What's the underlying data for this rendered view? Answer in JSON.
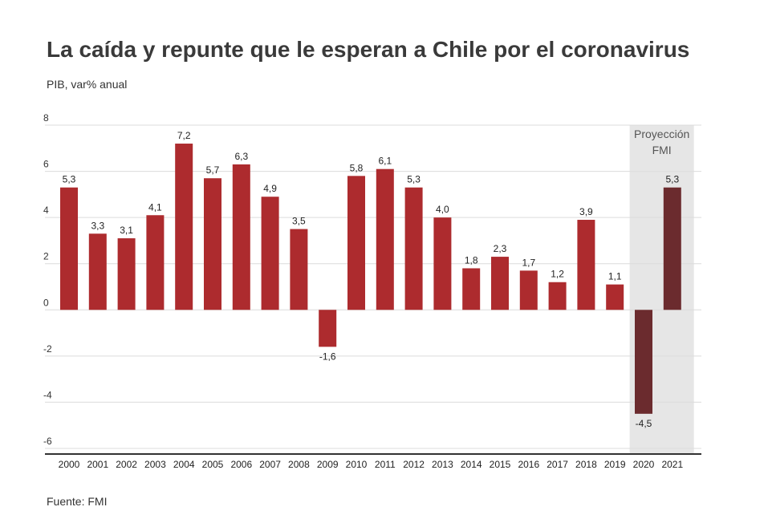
{
  "title": "La caída y repunte que le esperan a Chile por el coronavirus",
  "subtitle": "PIB, var% anual",
  "source": "Fuente: FMI",
  "colors": {
    "historical": "#ad2b2e",
    "projection": "#6b2b2e",
    "projection_band": "#e6e6e6",
    "grid": "#dcdcdc",
    "axis": "#333333"
  },
  "chart_data": {
    "type": "bar",
    "categories": [
      "2000",
      "2001",
      "2002",
      "2003",
      "2004",
      "2005",
      "2006",
      "2007",
      "2008",
      "2009",
      "2010",
      "2011",
      "2012",
      "2013",
      "2014",
      "2015",
      "2016",
      "2017",
      "2018",
      "2019",
      "2020",
      "2021"
    ],
    "values": [
      5.3,
      3.3,
      3.1,
      4.1,
      7.2,
      5.7,
      6.3,
      4.9,
      3.5,
      -1.6,
      5.8,
      6.1,
      5.3,
      4.0,
      1.8,
      2.3,
      1.7,
      1.2,
      3.9,
      1.1,
      -4.5,
      5.3
    ],
    "value_labels": [
      "5,3",
      "3,3",
      "3,1",
      "4,1",
      "7,2",
      "5,7",
      "6,3",
      "4,9",
      "3,5",
      "-1,6",
      "5,8",
      "6,1",
      "5,3",
      "4,0",
      "1,8",
      "2,3",
      "1,7",
      "1,2",
      "3,9",
      "1,1",
      "-4,5",
      "5,3"
    ],
    "projected": [
      "2020",
      "2021"
    ],
    "projection_label_lines": [
      "Proyección",
      "FMI"
    ],
    "ylim": [
      -6,
      8
    ],
    "yticks": [
      8,
      6,
      4,
      2,
      0,
      -2,
      -4,
      -6
    ],
    "ytick_labels": [
      "8",
      "6",
      "4",
      "2",
      "0",
      "-2",
      "-4",
      "-6"
    ],
    "grid": true,
    "legend": "none",
    "xlabel": "",
    "ylabel": ""
  }
}
